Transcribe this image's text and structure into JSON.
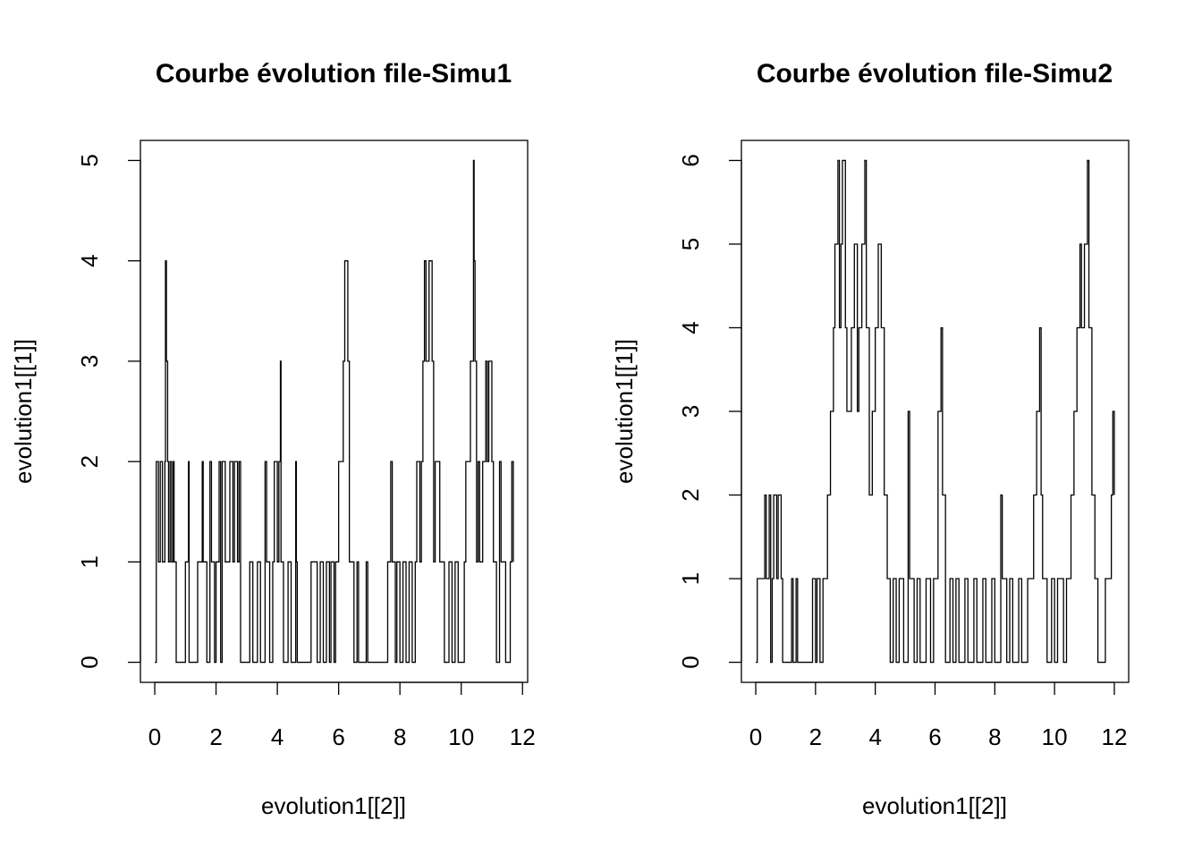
{
  "chart_data": [
    {
      "type": "step",
      "title": "Courbe évolution file-Simu1",
      "xlabel": "evolution1[[2]]",
      "ylabel": "evolution1[[1]]",
      "xlim": [
        -0.468,
        12.168
      ],
      "ylim": [
        -0.2,
        5.2
      ],
      "xticks": [
        0,
        2,
        4,
        6,
        8,
        10,
        12
      ],
      "yticks": [
        0,
        1,
        2,
        3,
        4,
        5
      ],
      "color": "#000000",
      "x": [
        0,
        0.05,
        0.12,
        0.18,
        0.25,
        0.33,
        0.35,
        0.38,
        0.42,
        0.45,
        0.5,
        0.55,
        0.6,
        0.63,
        0.7,
        1.0,
        1.1,
        1.12,
        1.4,
        1.55,
        1.58,
        1.7,
        1.8,
        1.85,
        1.95,
        2.0,
        2.1,
        2.15,
        2.2,
        2.3,
        2.45,
        2.55,
        2.6,
        2.7,
        2.75,
        2.8,
        3.1,
        3.2,
        3.35,
        3.45,
        3.6,
        3.65,
        3.75,
        3.85,
        3.9,
        4.0,
        4.05,
        4.1,
        4.12,
        4.2,
        4.35,
        4.45,
        4.6,
        4.62,
        4.65,
        5.1,
        5.3,
        5.4,
        5.5,
        5.6,
        5.7,
        5.75,
        5.85,
        5.9,
        6.0,
        6.15,
        6.2,
        6.3,
        6.35,
        6.5,
        6.6,
        6.65,
        6.9,
        6.95,
        7.6,
        7.7,
        7.75,
        7.85,
        7.9,
        8.0,
        8.1,
        8.2,
        8.3,
        8.4,
        8.5,
        8.55,
        8.65,
        8.7,
        8.75,
        8.8,
        8.85,
        8.95,
        9.05,
        9.1,
        9.15,
        9.3,
        9.45,
        9.6,
        9.7,
        9.8,
        9.9,
        10.1,
        10.15,
        10.3,
        10.4,
        10.42,
        10.45,
        10.5,
        10.55,
        10.6,
        10.7,
        10.8,
        10.85,
        10.9,
        11.0,
        11.05,
        11.15,
        11.25,
        11.3,
        11.45,
        11.6,
        11.65,
        11.7
      ],
      "values": [
        0,
        2,
        1,
        2,
        1,
        2,
        4,
        3,
        2,
        1,
        2,
        1,
        2,
        1,
        0,
        1,
        2,
        0,
        1,
        2,
        1,
        0,
        2,
        1,
        0,
        1,
        2,
        0,
        2,
        1,
        2,
        1,
        2,
        1,
        2,
        0,
        1,
        0,
        1,
        0,
        2,
        1,
        0,
        1,
        2,
        1,
        2,
        3,
        1,
        0,
        1,
        0,
        2,
        1,
        0,
        1,
        0,
        1,
        0,
        1,
        0,
        1,
        0,
        1,
        2,
        3,
        4,
        3,
        1,
        0,
        1,
        0,
        1,
        0,
        1,
        2,
        1,
        0,
        1,
        0,
        1,
        0,
        1,
        0,
        1,
        2,
        1,
        2,
        3,
        4,
        3,
        4,
        3,
        1,
        2,
        1,
        0,
        1,
        0,
        1,
        0,
        1,
        2,
        3,
        5,
        4,
        3,
        1,
        2,
        1,
        2,
        3,
        2,
        3,
        2,
        1,
        0,
        2,
        1,
        0,
        1,
        2,
        1
      ]
    },
    {
      "type": "step",
      "title": "Courbe évolution file-Simu2",
      "xlabel": "evolution1[[2]]",
      "ylabel": "evolution1[[1]]",
      "xlim": [
        -0.48,
        12.48
      ],
      "ylim": [
        -0.24,
        6.24
      ],
      "xticks": [
        0,
        2,
        4,
        6,
        8,
        10,
        12
      ],
      "yticks": [
        0,
        1,
        2,
        3,
        4,
        5,
        6
      ],
      "color": "#000000",
      "x": [
        0,
        0.05,
        0.3,
        0.35,
        0.45,
        0.5,
        0.55,
        0.6,
        0.7,
        0.75,
        0.85,
        0.9,
        1.2,
        1.25,
        1.35,
        1.4,
        1.9,
        2.0,
        2.05,
        2.15,
        2.25,
        2.4,
        2.5,
        2.6,
        2.65,
        2.75,
        2.8,
        2.85,
        2.9,
        3.0,
        3.05,
        3.2,
        3.3,
        3.4,
        3.45,
        3.55,
        3.65,
        3.7,
        3.8,
        3.9,
        4.0,
        4.1,
        4.2,
        4.3,
        4.4,
        4.5,
        4.6,
        4.7,
        4.8,
        4.95,
        5.1,
        5.15,
        5.3,
        5.4,
        5.5,
        5.7,
        5.85,
        5.95,
        6.1,
        6.2,
        6.25,
        6.35,
        6.5,
        6.6,
        6.7,
        6.8,
        7.0,
        7.1,
        7.3,
        7.4,
        7.6,
        7.7,
        7.9,
        8.0,
        8.2,
        8.25,
        8.4,
        8.5,
        8.6,
        8.8,
        8.9,
        9.1,
        9.3,
        9.4,
        9.5,
        9.55,
        9.6,
        9.75,
        9.9,
        10.0,
        10.1,
        10.3,
        10.4,
        10.55,
        10.65,
        10.75,
        10.85,
        10.9,
        11.0,
        11.1,
        11.15,
        11.25,
        11.35,
        11.45,
        11.7,
        11.9,
        11.95,
        12.0
      ],
      "values": [
        0,
        1,
        2,
        1,
        2,
        0,
        1,
        2,
        1,
        2,
        1,
        0,
        1,
        0,
        1,
        0,
        1,
        0,
        1,
        0,
        1,
        2,
        3,
        4,
        5,
        6,
        4,
        5,
        6,
        4,
        3,
        4,
        5,
        3,
        4,
        5,
        6,
        4,
        2,
        3,
        4,
        5,
        4,
        2,
        1,
        0,
        1,
        0,
        1,
        0,
        3,
        1,
        0,
        1,
        0,
        1,
        0,
        1,
        3,
        4,
        2,
        0,
        1,
        0,
        1,
        0,
        1,
        0,
        1,
        0,
        1,
        0,
        1,
        0,
        2,
        1,
        0,
        1,
        0,
        1,
        0,
        1,
        2,
        3,
        4,
        2,
        1,
        0,
        1,
        0,
        1,
        0,
        1,
        2,
        3,
        4,
        5,
        4,
        5,
        6,
        4,
        2,
        1,
        0,
        1,
        2,
        3,
        2
      ]
    }
  ]
}
